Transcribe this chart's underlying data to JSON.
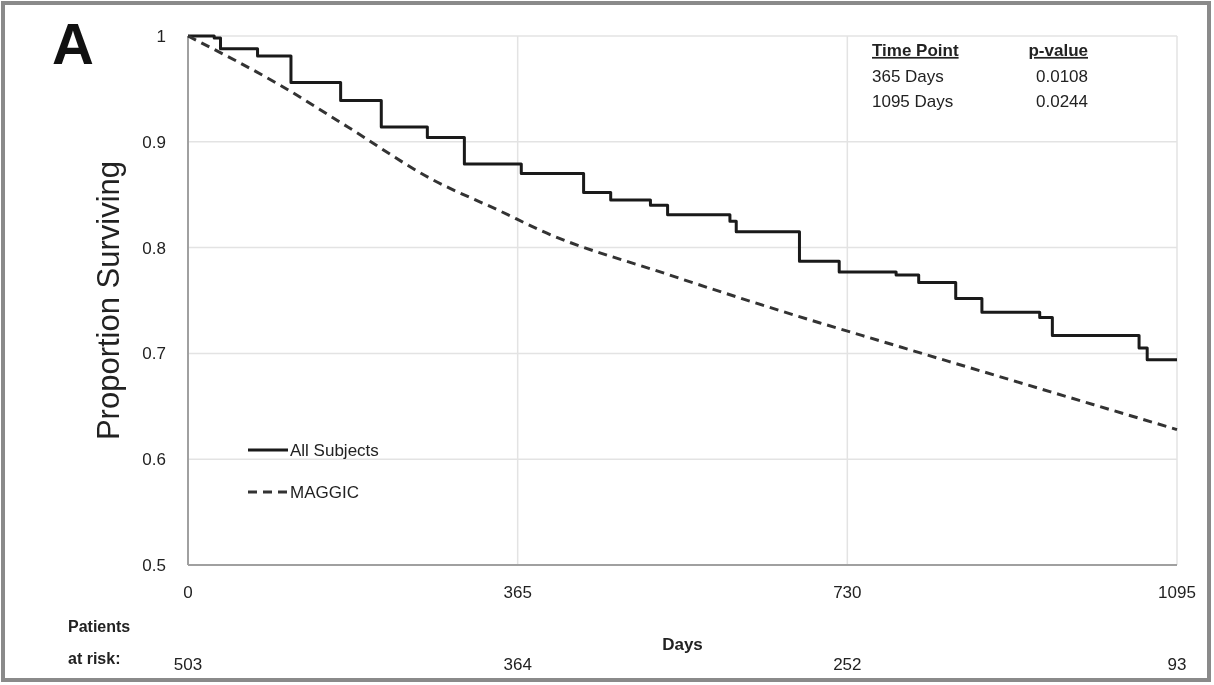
{
  "chart_data": {
    "type": "line",
    "xlabel": "Days",
    "ylabel": "Proportion Surviving",
    "xlim": [
      0,
      1095
    ],
    "xticks": [
      0,
      365,
      730,
      1095
    ],
    "ylim": [
      0.5,
      1
    ],
    "yticks": [
      0.5,
      0.6,
      0.7,
      0.8,
      0.9,
      1
    ],
    "grid": true,
    "legend": "bottom left",
    "series": [
      {
        "name": "All Subjects",
        "type": "step",
        "color": "#1a1a1a",
        "line_style": "solid",
        "x": [
          0,
          29,
          36,
          77,
          114,
          169,
          214,
          265,
          306,
          369,
          438,
          468,
          512,
          531,
          600,
          607,
          677,
          721,
          784,
          809,
          850,
          879,
          943,
          957,
          1053,
          1062,
          1095
        ],
        "values": [
          1.0,
          0.998,
          0.988,
          0.981,
          0.956,
          0.939,
          0.914,
          0.904,
          0.879,
          0.87,
          0.852,
          0.845,
          0.84,
          0.831,
          0.825,
          0.815,
          0.787,
          0.777,
          0.774,
          0.767,
          0.752,
          0.739,
          0.734,
          0.717,
          0.705,
          0.694,
          0.694
        ]
      },
      {
        "name": "MAGGIC",
        "color": "#333333",
        "line_style": "dashed",
        "x": [
          0,
          103,
          177,
          269,
          347,
          391,
          530,
          699,
          746,
          1095
        ],
        "values": [
          1.0,
          0.953,
          0.914,
          0.865,
          0.834,
          0.816,
          0.775,
          0.729,
          0.717,
          0.628
        ]
      }
    ],
    "annotations": [
      "A",
      "Time Point",
      "p-value",
      "365 Days",
      "0.0108",
      "1095 Days",
      "0.0244",
      "Patients at risk:",
      "503",
      "364",
      "252",
      "93"
    ]
  }
}
